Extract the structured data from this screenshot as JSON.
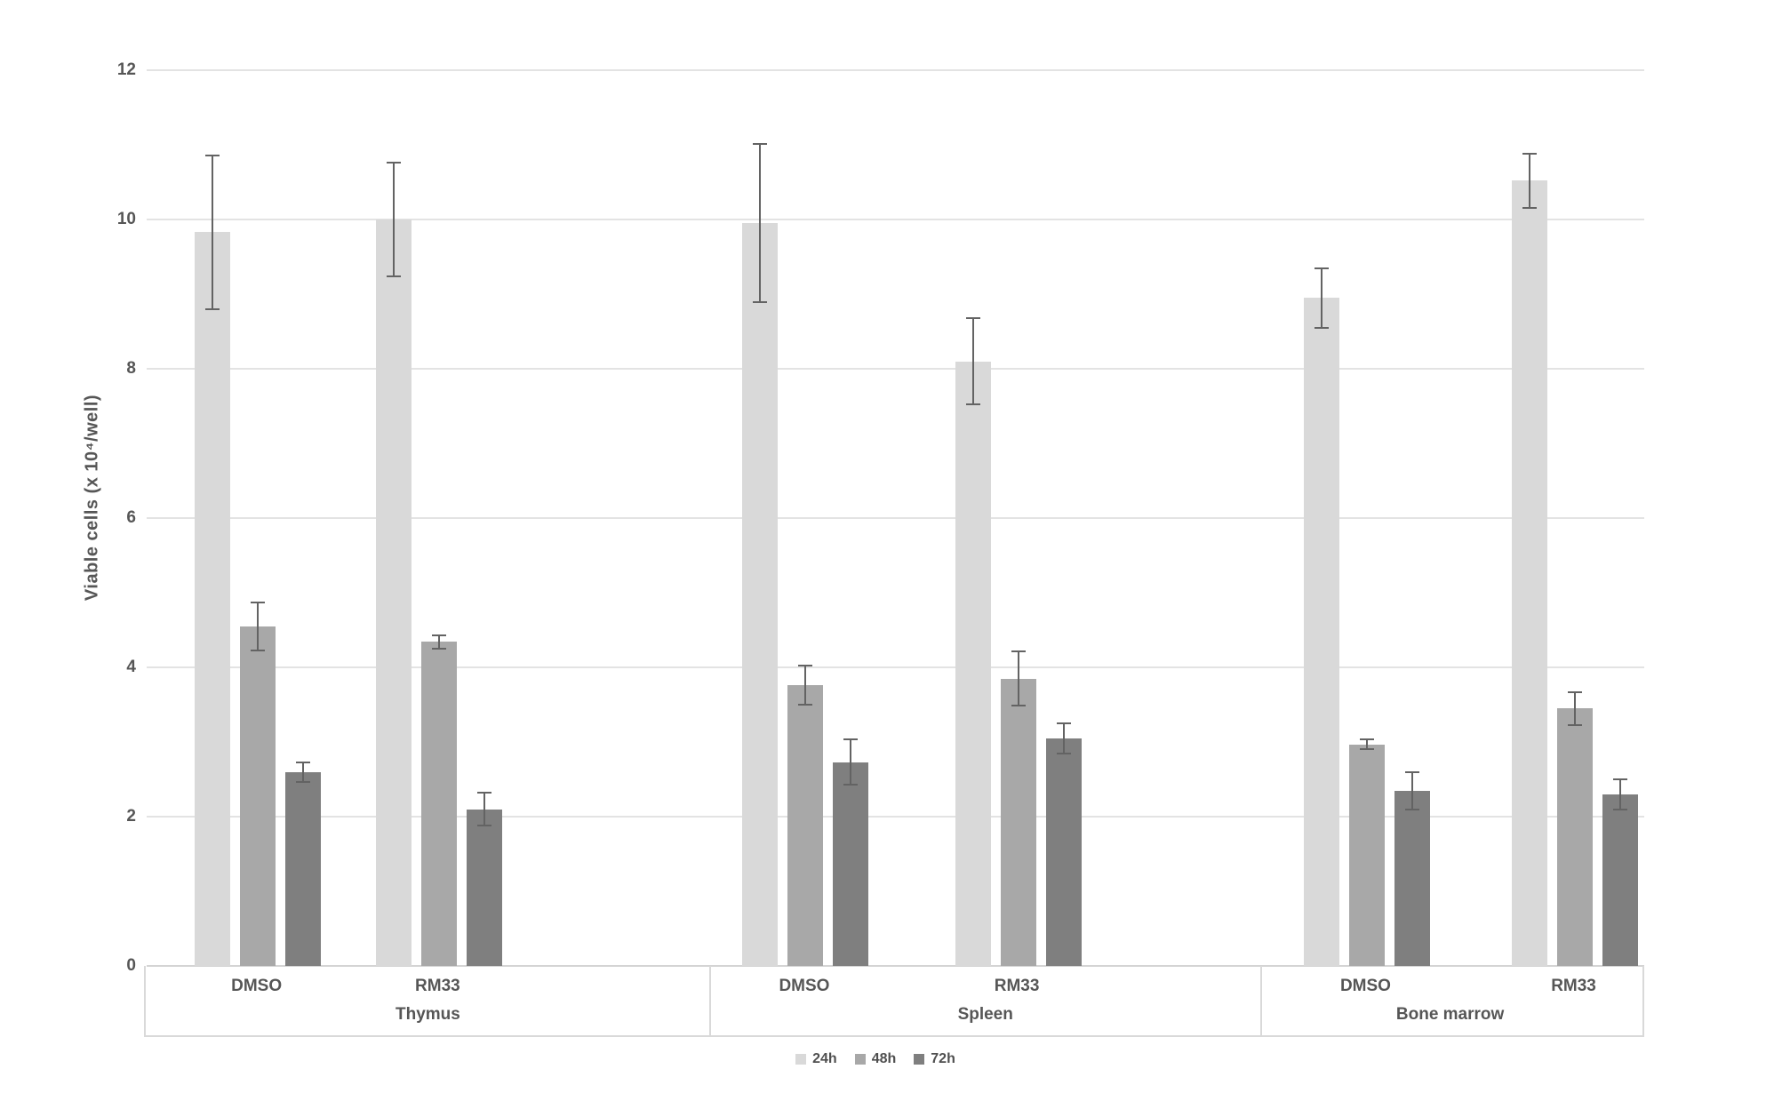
{
  "chart_data": {
    "type": "bar",
    "title": "",
    "xlabel": "",
    "ylabel": "Viable cells (x 10⁴/well)",
    "ylim": [
      0,
      12
    ],
    "yticks": [
      0,
      2,
      4,
      6,
      8,
      10,
      12
    ],
    "grid": "horizontal",
    "legend_position": "bottom-center",
    "legend": [
      "24h",
      "48h",
      "72h"
    ],
    "series": [
      {
        "name": "24h",
        "color": "#d9d9d9"
      },
      {
        "name": "48h",
        "color": "#a8a8a8"
      },
      {
        "name": "72h",
        "color": "#7f7f7f"
      }
    ],
    "error_bar_color": "#636363",
    "groups": [
      {
        "label": "Thymus",
        "conditions": [
          {
            "label": "DMSO",
            "values": [
              9.83,
              4.55,
              2.6
            ],
            "errors": [
              1.03,
              0.32,
              0.13
            ]
          },
          {
            "label": "RM33",
            "values": [
              10.0,
              4.34,
              2.1
            ],
            "errors": [
              0.76,
              0.09,
              0.22
            ]
          }
        ]
      },
      {
        "label": "Spleen",
        "conditions": [
          {
            "label": "DMSO",
            "values": [
              9.95,
              3.76,
              2.73
            ],
            "errors": [
              1.06,
              0.26,
              0.3
            ]
          },
          {
            "label": "RM33",
            "values": [
              8.1,
              3.85,
              3.05
            ],
            "errors": [
              0.58,
              0.36,
              0.2
            ]
          }
        ]
      },
      {
        "label": "Bone marrow",
        "conditions": [
          {
            "label": "DMSO",
            "values": [
              8.95,
              2.97,
              2.35
            ],
            "errors": [
              0.4,
              0.07,
              0.25
            ]
          },
          {
            "label": "RM33",
            "values": [
              10.52,
              3.45,
              2.3
            ],
            "errors": [
              0.36,
              0.22,
              0.2
            ]
          }
        ]
      }
    ],
    "layout_hints": {
      "group_bounds_pct": [
        0,
        37.7,
        74.5,
        99.8
      ],
      "cluster_centers_pct": [
        [
          7.4,
          19.5
        ],
        [
          44.0,
          58.2
        ],
        [
          81.5,
          95.4
        ]
      ]
    }
  }
}
